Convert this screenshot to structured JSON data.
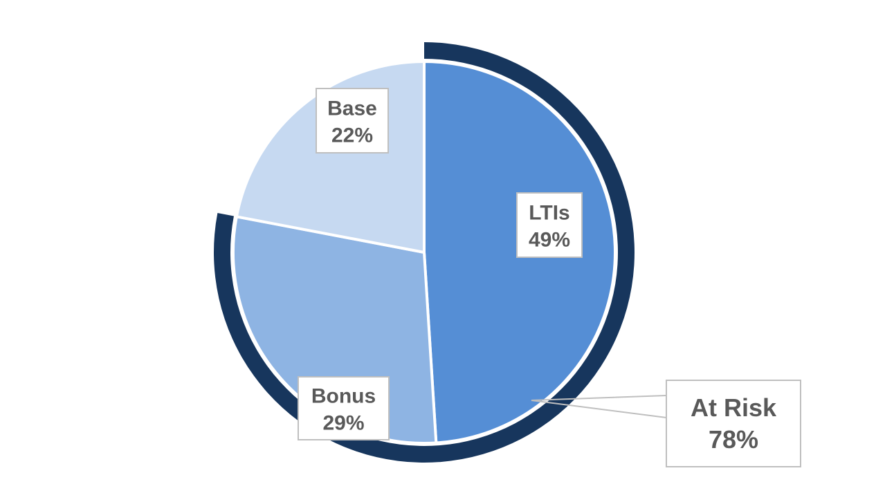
{
  "chart_data": {
    "type": "pie",
    "title": "",
    "slices": [
      {
        "name": "LTIs",
        "value": 49,
        "value_label": "49%",
        "color": "#558ed5"
      },
      {
        "name": "Bonus",
        "value": 29,
        "value_label": "29%",
        "color": "#8eb4e3"
      },
      {
        "name": "Base",
        "value": 22,
        "value_label": "22%",
        "color": "#c6d9f1"
      }
    ],
    "group": {
      "name": "At Risk",
      "value": 78,
      "value_label": "78%",
      "members": [
        "LTIs",
        "Bonus"
      ],
      "color": "#17365d"
    },
    "start_angle": "12 o'clock",
    "direction": "clockwise"
  }
}
